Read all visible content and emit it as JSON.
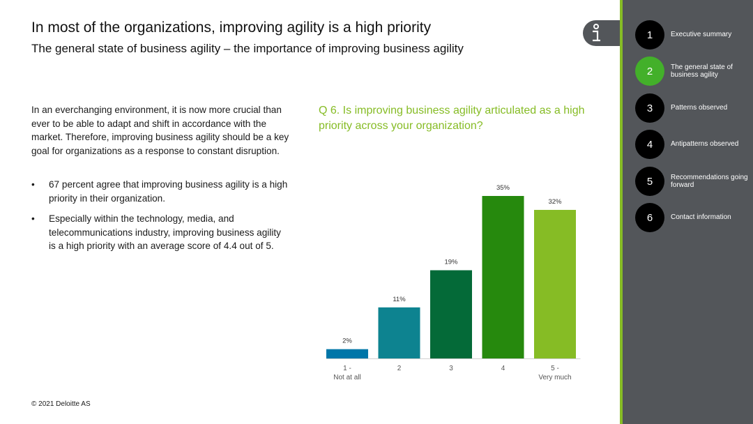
{
  "header": {
    "title": "In most of the organizations, improving agility is a high priority",
    "subtitle": "The general state of business agility – the importance of improving business agility"
  },
  "body": {
    "paragraph": "In an everchanging environment, it is now more crucial than ever to be able to adapt and shift in accordance with the market. Therefore, improving business agility should be a key goal for organizations as a response to constant disruption.",
    "bullets": [
      "67 percent agree that improving business agility is a high priority in their organization.",
      "Especially within the technology, media, and telecommunications industry, improving business agility is a high priority with an average score of 4.4 out of 5."
    ],
    "bullet_symbol": "•"
  },
  "question": "Q 6. Is improving business agility articulated as a high priority across your organization?",
  "chart_data": {
    "type": "bar",
    "categories": [
      [
        "1 -",
        "Not at all"
      ],
      [
        "2"
      ],
      [
        "3"
      ],
      [
        "4"
      ],
      [
        "5 -",
        "Very much"
      ]
    ],
    "values": [
      2,
      11,
      19,
      35,
      32
    ],
    "value_labels": [
      "2%",
      "11%",
      "19%",
      "35%",
      "32%"
    ],
    "colors": [
      "#0076a8",
      "#0d8390",
      "#046a38",
      "#26890d",
      "#86bc25"
    ],
    "ylim": [
      0,
      35
    ],
    "grid": false,
    "legend": "none"
  },
  "footer": "© 2021 Deloitte AS",
  "sidebar": {
    "accent": "#86bc25",
    "active_color": "#43b02a",
    "items": [
      {
        "num": "1",
        "label": "Executive summary",
        "active": false
      },
      {
        "num": "2",
        "label": "The general state of business agility",
        "active": true
      },
      {
        "num": "3",
        "label": "Patterns observed",
        "active": false
      },
      {
        "num": "4",
        "label": "Antipatterns observed",
        "active": false
      },
      {
        "num": "5",
        "label": "Recommendations going forward",
        "active": false
      },
      {
        "num": "6",
        "label": "Contact information",
        "active": false
      }
    ]
  },
  "icons": {
    "info": "info-icon"
  }
}
